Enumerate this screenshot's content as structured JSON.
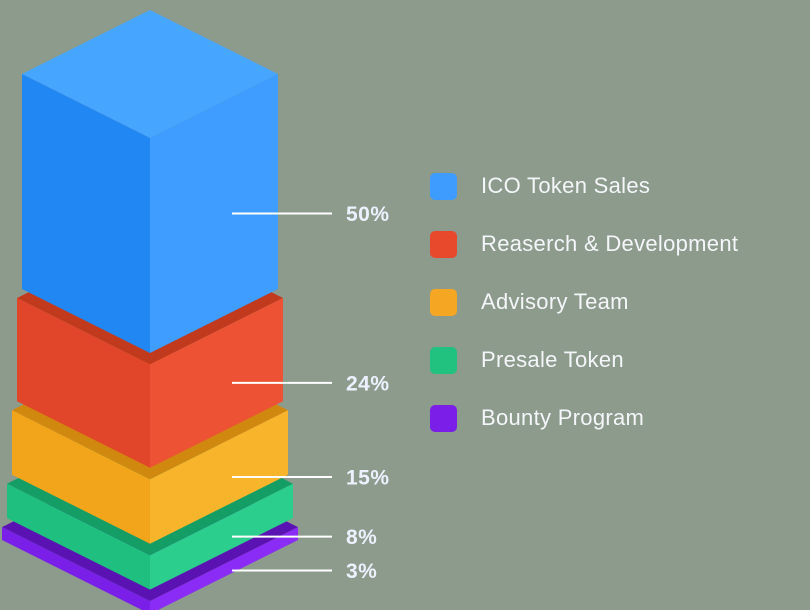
{
  "background_color": "#8C9B8C",
  "chart_data": {
    "type": "bar",
    "subtype": "isometric-3d-stacked-column",
    "title": "",
    "xlabel": "",
    "ylabel": "",
    "legend_position": "right",
    "grid": false,
    "categories": [
      "ICO Token Sales",
      "Reaserch & Development",
      "Advisory Team",
      "Presale Token",
      "Bounty Program"
    ],
    "values": [
      50,
      24,
      15,
      8,
      3
    ],
    "value_labels": [
      "50%",
      "24%",
      "15%",
      "8%",
      "3%"
    ],
    "callout_color": "#FFFFFF",
    "value_label_color": "#EDF1FE",
    "legend": [
      {
        "label": "ICO Token Sales",
        "color": "#3E9BFF"
      },
      {
        "label": "Reaserch & Development",
        "color": "#E8492C"
      },
      {
        "label": "Advisory Team",
        "color": "#F5A623"
      },
      {
        "label": "Presale Token",
        "color": "#21C17F"
      },
      {
        "label": "Bounty Program",
        "color": "#7B1FE8"
      }
    ],
    "segment_faces": [
      {
        "name": "blue",
        "top": "#46A6FF",
        "left": "#2187F2",
        "right": "#3E9DFF"
      },
      {
        "name": "red",
        "top": "#C23A1E",
        "left": "#E2462A",
        "right": "#EC5233"
      },
      {
        "name": "orange",
        "top": "#D1880F",
        "left": "#F2A51B",
        "right": "#F8B42A"
      },
      {
        "name": "green",
        "top": "#149E66",
        "left": "#1FBF7F",
        "right": "#2CCE8D"
      },
      {
        "name": "purple",
        "top": "#5A13B2",
        "left": "#7A1FE8",
        "right": "#8B2CF6"
      }
    ]
  }
}
